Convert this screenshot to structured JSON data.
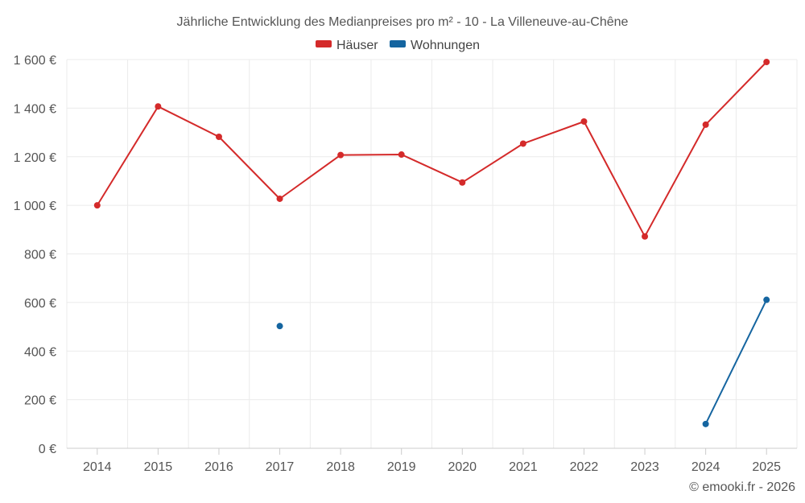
{
  "chart_data": {
    "type": "line",
    "title": "Jährliche Entwicklung des Medianpreises pro m² - 10 - La Villeneuve-au-Chêne",
    "categories": [
      "2014",
      "2015",
      "2016",
      "2017",
      "2018",
      "2019",
      "2020",
      "2021",
      "2022",
      "2023",
      "2024",
      "2025"
    ],
    "y_ticks": [
      {
        "value": 0,
        "label": "0 €"
      },
      {
        "value": 200,
        "label": "200 €"
      },
      {
        "value": 400,
        "label": "400 €"
      },
      {
        "value": 600,
        "label": "600 €"
      },
      {
        "value": 800,
        "label": "800 €"
      },
      {
        "value": 1000,
        "label": "1 000 €"
      },
      {
        "value": 1200,
        "label": "1 200 €"
      },
      {
        "value": 1400,
        "label": "1 400 €"
      },
      {
        "value": 1600,
        "label": "1 600 €"
      }
    ],
    "ylim": [
      0,
      1600
    ],
    "grid": true,
    "legend_position": "top-center",
    "series": [
      {
        "name": "Häuser",
        "key": "haeuser",
        "color": "#d42a2a",
        "values": [
          1000,
          1407,
          1282,
          1027,
          1207,
          1209,
          1094,
          1254,
          1345,
          872,
          1332,
          1590
        ]
      },
      {
        "name": "Wohnungen",
        "key": "wohnungen",
        "color": "#1565a0",
        "values": [
          null,
          null,
          null,
          503,
          null,
          null,
          null,
          null,
          null,
          null,
          100,
          611
        ]
      }
    ],
    "credit": "© emooki.fr - 2026"
  }
}
